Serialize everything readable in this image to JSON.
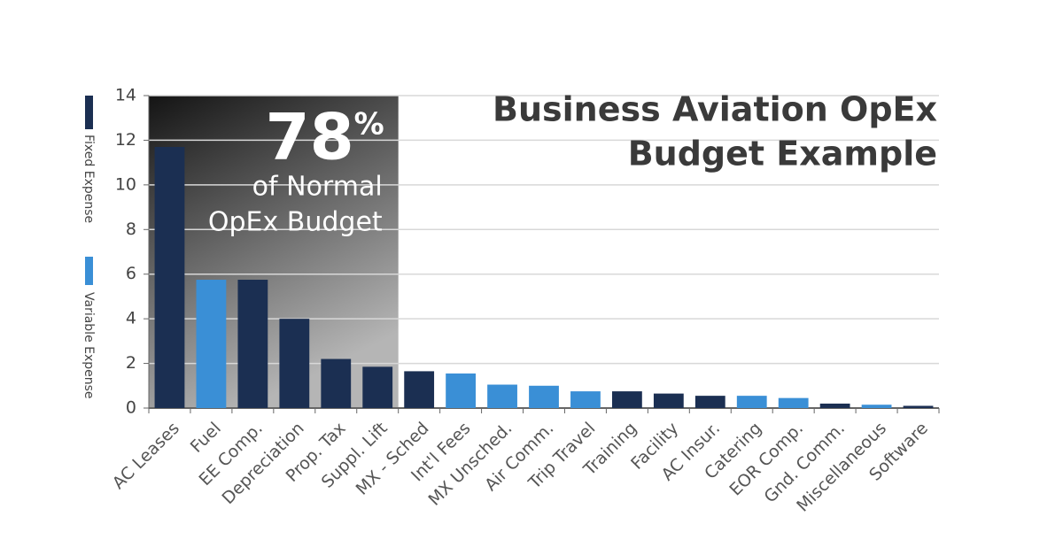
{
  "chart_data": {
    "type": "bar",
    "title": [
      "Business Aviation OpEx",
      "Budget Example"
    ],
    "highlight": {
      "big": "78",
      "unit": "%",
      "lines": [
        "of Normal",
        "OpEx Budget"
      ]
    },
    "categories": [
      "AC Leases",
      "Fuel",
      "EE Comp.",
      "Depreciation",
      "Prop. Tax",
      "Suppl. Lift",
      "MX - Sched",
      "Int'l Fees",
      "MX Unsched.",
      "Air Comm.",
      "Trip Travel",
      "Training",
      "Facility",
      "AC Insur.",
      "Catering",
      "EOR Comp.",
      "Gnd. Comm.",
      "Miscellaneous",
      "Software"
    ],
    "series": [
      {
        "name": "Fixed Expense",
        "color": "#1b2f52",
        "values": [
          11.7,
          null,
          5.75,
          4.0,
          2.2,
          1.85,
          1.65,
          null,
          null,
          null,
          null,
          0.75,
          0.65,
          0.55,
          null,
          null,
          0.2,
          null,
          0.1
        ]
      },
      {
        "name": "Variable Expense",
        "color": "#3a8fd6",
        "values": [
          null,
          5.75,
          null,
          null,
          null,
          null,
          null,
          1.55,
          1.05,
          1.0,
          0.75,
          null,
          null,
          null,
          0.55,
          0.45,
          null,
          0.15,
          null
        ]
      }
    ],
    "ylim": [
      0,
      14
    ],
    "yticks": [
      0,
      2,
      4,
      6,
      8,
      10,
      12,
      14
    ],
    "grid": true
  }
}
